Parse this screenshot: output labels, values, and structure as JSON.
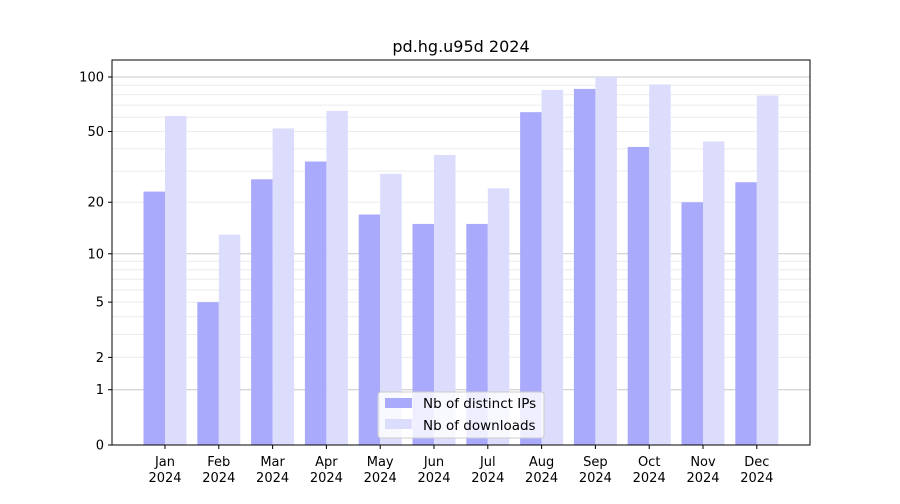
{
  "chart_data": {
    "type": "bar",
    "title": "pd.hg.u95d 2024",
    "xlabel": "",
    "ylabel": "",
    "yscale": "log(1+y)",
    "ylim": [
      0,
      120
    ],
    "yticks": [
      0,
      1,
      2,
      5,
      10,
      20,
      50,
      100
    ],
    "grid": true,
    "legend_position": "lower-center",
    "categories": [
      "Jan\n2024",
      "Feb\n2024",
      "Mar\n2024",
      "Apr\n2024",
      "May\n2024",
      "Jun\n2024",
      "Jul\n2024",
      "Aug\n2024",
      "Sep\n2024",
      "Oct\n2024",
      "Nov\n2024",
      "Dec\n2024"
    ],
    "series": [
      {
        "name": "Nb of distinct IPs",
        "color": "#aaaafd",
        "values": [
          23,
          5,
          27,
          34,
          17,
          15,
          15,
          64,
          86,
          41,
          20,
          26
        ]
      },
      {
        "name": "Nb of downloads",
        "color": "#dcdcfd",
        "values": [
          61,
          13,
          52,
          65,
          29,
          37,
          24,
          85,
          100,
          91,
          44,
          79
        ]
      }
    ]
  }
}
